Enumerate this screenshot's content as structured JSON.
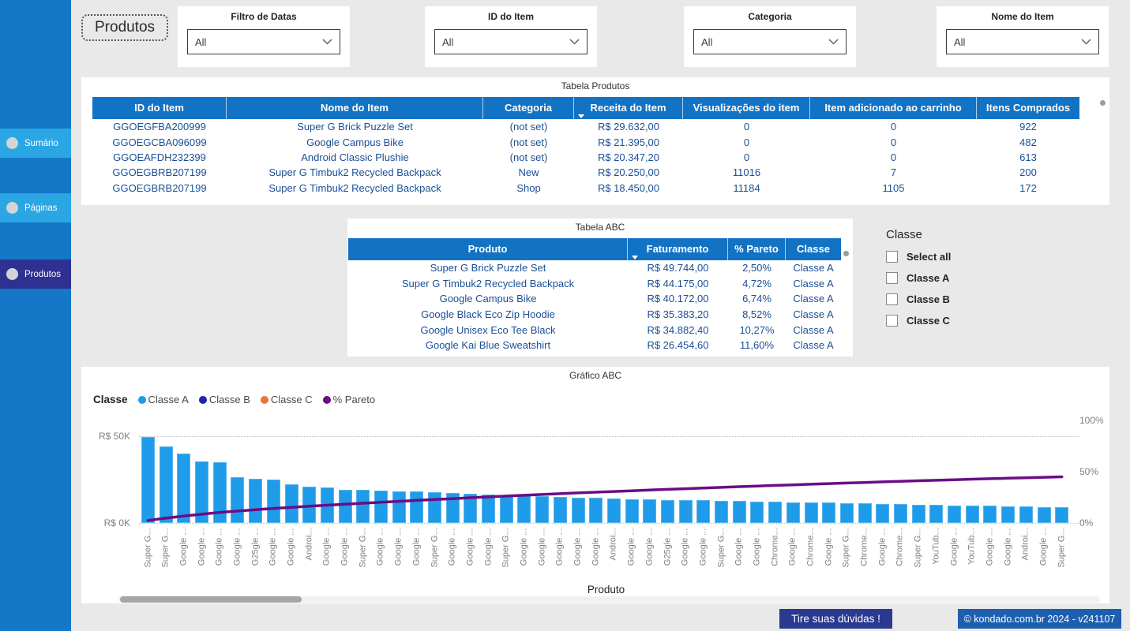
{
  "page": {
    "title": "Produtos"
  },
  "sidebar": {
    "items": [
      {
        "label": "Sumário",
        "color": "#2ba6e4"
      },
      {
        "label": "Páginas",
        "color": "#2ba6e4"
      },
      {
        "label": "Produtos",
        "color": "#2e3192"
      }
    ]
  },
  "filters": [
    {
      "label": "Filtro de Datas",
      "value": "All"
    },
    {
      "label": "ID do Item",
      "value": "All"
    },
    {
      "label": "Categoria",
      "value": "All"
    },
    {
      "label": "Nome do Item",
      "value": "All"
    }
  ],
  "tabela_produtos": {
    "title": "Tabela Produtos",
    "sort_col": 3,
    "columns": [
      "ID do Item",
      "Nome do Item",
      "Categoria",
      "Receita do Item",
      "Visualizações do item",
      "Item adicionado ao carrinho",
      "Itens Comprados"
    ],
    "rows": [
      [
        "GGOEGFBA200999",
        "Super G Brick Puzzle Set",
        "(not set)",
        "R$ 29.632,00",
        "0",
        "0",
        "922"
      ],
      [
        "GGOEGCBA096099",
        "Google Campus Bike",
        "(not set)",
        "R$ 21.395,00",
        "0",
        "0",
        "482"
      ],
      [
        "GGOEAFDH232399",
        "Android Classic Plushie",
        "(not set)",
        "R$ 20.347,20",
        "0",
        "0",
        "613"
      ],
      [
        "GGOEGBRB207199",
        "Super G Timbuk2 Recycled Backpack",
        "New",
        "R$ 20.250,00",
        "11016",
        "7",
        "200"
      ],
      [
        "GGOEGBRB207199",
        "Super G Timbuk2 Recycled Backpack",
        "Shop",
        "R$ 18.450,00",
        "11184",
        "1105",
        "172"
      ]
    ]
  },
  "tabela_abc": {
    "title": "Tabela ABC",
    "sort_col": 1,
    "columns": [
      "Produto",
      "Faturamento",
      "% Pareto",
      "Classe"
    ],
    "rows": [
      [
        "Super G Brick Puzzle Set",
        "R$ 49.744,00",
        "2,50%",
        "Classe A"
      ],
      [
        "Super G Timbuk2 Recycled Backpack",
        "R$ 44.175,00",
        "4,72%",
        "Classe A"
      ],
      [
        "Google Campus Bike",
        "R$ 40.172,00",
        "6,74%",
        "Classe A"
      ],
      [
        "Google Black Eco Zip Hoodie",
        "R$ 35.383,20",
        "8,52%",
        "Classe A"
      ],
      [
        "Google Unisex Eco Tee Black",
        "R$ 34.882,40",
        "10,27%",
        "Classe A"
      ],
      [
        "Google Kai Blue Sweatshirt",
        "R$ 26.454,60",
        "11,60%",
        "Classe A"
      ]
    ]
  },
  "classe_filter": {
    "title": "Classe",
    "options": [
      "Select all",
      "Classe A",
      "Classe B",
      "Classe C"
    ]
  },
  "chart_data": {
    "type": "bar",
    "subtype": "pareto (bars + cumulative % line)",
    "title": "Gráfico ABC",
    "xlabel": "Produto",
    "legend_title": "Classe",
    "legend": [
      {
        "label": "Classe A",
        "color": "#1e9be9"
      },
      {
        "label": "Classe B",
        "color": "#2124a6"
      },
      {
        "label": "Classe C",
        "color": "#e8743c"
      },
      {
        "label": "% Pareto",
        "color": "#6b0d84"
      }
    ],
    "bar_color": "#1e9be9",
    "line_color": "#6b0d84",
    "y_left_ticks": [
      "R$ 50K",
      "R$ 0K"
    ],
    "y_left_max_k": 50,
    "y_right_ticks": [
      "100%",
      "50%",
      "0%"
    ],
    "y_right_max": 100,
    "categories": [
      "Super G...",
      "Super G...",
      "Google ...",
      "Google ...",
      "Google ...",
      "Google ...",
      "G25gle ...",
      "Google ...",
      "Google ...",
      "Androi...",
      "Google ...",
      "Google ...",
      "Super G...",
      "Google ...",
      "Google ...",
      "Google ...",
      "Super G...",
      "Google ...",
      "Google ...",
      "Google ...",
      "Super G...",
      "Google ...",
      "Google ...",
      "Google ...",
      "Google ...",
      "Google ...",
      "Androi...",
      "Google ...",
      "Google ...",
      "G25gle ...",
      "Google ...",
      "Google ...",
      "Super G...",
      "Google ...",
      "Google ...",
      "Chrome...",
      "Google ...",
      "Chrome...",
      "Google ...",
      "Super G...",
      "Chrome...",
      "Google ...",
      "Chrome...",
      "Super G...",
      "YouTub...",
      "Google ...",
      "YouTub...",
      "Google ...",
      "Google ...",
      "Androi...",
      "Google ...",
      "Super G..."
    ],
    "bar_values_k": [
      49.7,
      44.2,
      40.2,
      35.4,
      34.9,
      26.5,
      25.3,
      24.8,
      22.1,
      20.7,
      20.3,
      19.3,
      18.9,
      18.6,
      18.3,
      18.0,
      17.7,
      17.3,
      16.9,
      16.5,
      16.1,
      15.7,
      15.3,
      15.0,
      14.7,
      14.4,
      14.1,
      13.8,
      13.6,
      13.4,
      13.2,
      13.0,
      12.8,
      12.6,
      12.4,
      12.2,
      12.0,
      11.8,
      11.6,
      11.4,
      11.2,
      11.0,
      10.8,
      10.6,
      10.4,
      10.2,
      10.0,
      9.8,
      9.6,
      9.4,
      9.2,
      9.0
    ],
    "pareto_pct": [
      2.5,
      4.72,
      6.74,
      8.52,
      10.27,
      11.6,
      12.88,
      14.12,
      15.23,
      16.27,
      17.29,
      18.26,
      19.21,
      20.15,
      21.07,
      21.97,
      22.86,
      23.73,
      24.58,
      25.41,
      26.22,
      27.01,
      27.78,
      28.53,
      29.27,
      29.99,
      30.7,
      31.4,
      32.08,
      32.75,
      33.42,
      34.07,
      34.71,
      35.35,
      35.97,
      36.58,
      37.18,
      37.78,
      38.36,
      38.93,
      39.5,
      40.05,
      40.59,
      41.13,
      41.65,
      42.16,
      42.66,
      43.16,
      43.64,
      44.11,
      44.57,
      45.02
    ]
  },
  "footer": {
    "help_button": "Tire suas dúvidas !",
    "version_badge": "© kondado.com.br 2024 - v241107"
  },
  "colors": {
    "sidebar": "#1577c8",
    "sidebar_item": "#2ba6e4",
    "sidebar_item_active": "#2e3192",
    "table_header": "#1273c5",
    "table_text": "#1a4f96",
    "bar_blue": "#1e9be9",
    "pareto_purple": "#6b0d84",
    "footer_navy": "#2b3990",
    "footer_blue": "#1d5faf"
  }
}
